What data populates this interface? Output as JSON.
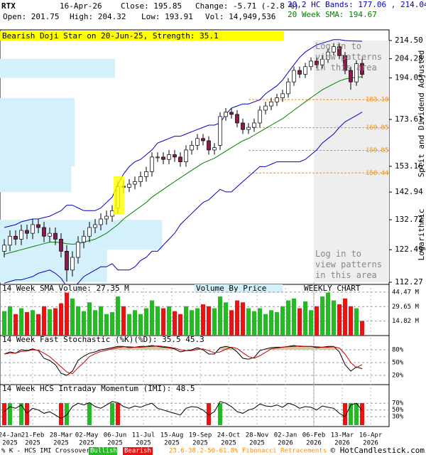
{
  "header": {
    "symbol": "RTX",
    "date": "16-Apr-26",
    "close": "Close: 195.85",
    "open": "Open: 201.75",
    "high": "High: 204.32",
    "low": "Low: 193.91",
    "change": "Change: -5.71 (-2.8 %)",
    "volume": "Vol: 14,949,536",
    "bands": "20,2 HC Bands: 177.06 , 214.04",
    "sma": "20 Week SMA: 194.67",
    "pattern": "Bearish Doji Star on 20-Jun-25, Strength: 35.1",
    "login_top": "Log in to view patterns in this area",
    "login_bottom": "Log in to view patterns in this area",
    "adjusted": "Split and Dividend Adjusted",
    "scale": "Logarithmic",
    "volume_by_price": "Volume By Price",
    "weekly": "WEEKLY CHART",
    "crossover": "% K - HCS IMI Crossover:",
    "bullish": "Bullish",
    "bearish": "Bearish",
    "fib": "23.6-38.2-50-61.8% Fibonacci Retracements",
    "copyright": "© HotCandlestick.com"
  },
  "chart_data": [
    {
      "type": "candlestick",
      "log_scale": true,
      "ylim": [
        112.27,
        214.5
      ],
      "yticks": [
        {
          "value": 214.5,
          "label": "214.50"
        },
        204.28,
        194.05,
        173.61,
        153.16,
        142.94,
        132.72,
        122.49,
        112.27
      ],
      "xticks": [
        {
          "value": 1,
          "label": "24-Jan",
          "year": "2025"
        },
        {
          "value": 5,
          "label": "21-Feb",
          "year": "2025"
        },
        {
          "value": 10,
          "label": "28-Mar",
          "year": "2025"
        },
        {
          "value": 14.5,
          "label": "02-May",
          "year": "2025"
        },
        {
          "value": 19.5,
          "label": "06-Jun",
          "year": "2025"
        },
        {
          "value": 24.5,
          "label": "11-Jul",
          "year": "2025"
        },
        {
          "value": 29.5,
          "label": "15-Aug",
          "year": "2025"
        },
        {
          "value": 34.5,
          "label": "19-Sep",
          "year": "2025"
        },
        {
          "value": 39.5,
          "label": "24-Oct",
          "year": "2025"
        },
        {
          "value": 44.5,
          "label": "28-Nov",
          "year": "2025"
        },
        {
          "value": 49.5,
          "label": "02-Jan",
          "year": "2026"
        },
        {
          "value": 54.5,
          "label": "06-Feb",
          "year": "2026"
        },
        {
          "value": 59.5,
          "label": "13-Mar",
          "year": "2026"
        },
        {
          "value": 64.5,
          "label": "16-Apr",
          "year": "2026"
        }
      ],
      "up_color": "#ffffff",
      "down_color": "#8b1a4a",
      "open": [
        122,
        124,
        127,
        126,
        129,
        128,
        131,
        130,
        127,
        128,
        126,
        122,
        116,
        120,
        125,
        127,
        130,
        131,
        133,
        134,
        137,
        145.2,
        144.8,
        146,
        147,
        149,
        151,
        157,
        157,
        156,
        158,
        157,
        155,
        160,
        162,
        165,
        164,
        160,
        162,
        175,
        177,
        176,
        172,
        169,
        170,
        172,
        178,
        180,
        182,
        184,
        186,
        192,
        198,
        196,
        200,
        203,
        201,
        204,
        208,
        211,
        206,
        198,
        192,
        201.75
      ],
      "high": [
        126,
        129,
        129,
        131,
        131,
        133,
        133,
        132,
        130,
        130,
        128,
        124,
        122,
        127,
        129,
        132,
        133,
        135,
        136,
        138,
        147,
        147.5,
        148,
        149,
        151,
        153,
        159,
        159,
        159,
        160,
        160,
        159,
        162,
        164,
        167,
        167,
        166,
        163,
        177,
        179,
        179,
        178,
        174,
        172,
        174,
        180,
        182,
        184,
        186,
        188,
        194,
        200,
        200,
        202,
        205,
        205,
        206,
        210,
        213,
        213,
        208,
        200,
        203.5,
        204.32
      ],
      "low": [
        120,
        122,
        124,
        124,
        126,
        126,
        128,
        125,
        125,
        124,
        120,
        112.5,
        114,
        118,
        123,
        125,
        128,
        129,
        131,
        132,
        135,
        142.5,
        143,
        144,
        145,
        147,
        149,
        155,
        154,
        154,
        155,
        153,
        153,
        158,
        160,
        162,
        158,
        158,
        160,
        173,
        174,
        170,
        167,
        167,
        168,
        170,
        176,
        178,
        180,
        182,
        184,
        190,
        194,
        194,
        198,
        199,
        199,
        202,
        206,
        204,
        196,
        188,
        190,
        193.91
      ],
      "close": [
        124,
        127,
        126,
        129,
        128,
        131,
        130,
        127,
        128,
        126,
        122,
        116,
        120,
        125,
        127,
        130,
        131,
        133,
        134,
        136,
        145,
        144.8,
        146,
        147,
        149,
        151,
        157,
        157,
        156,
        158,
        157,
        155,
        160,
        162,
        165,
        164,
        160,
        161,
        175,
        177,
        176,
        172,
        169,
        170,
        172,
        178,
        180,
        182,
        184,
        186,
        192,
        198,
        196,
        200,
        203,
        201,
        204,
        208,
        211,
        206,
        198,
        192,
        201.56,
        195.85
      ],
      "sma": {
        "color": "#008000",
        "values": [
          121,
          121.5,
          122,
          122.5,
          123,
          123.5,
          124,
          124.5,
          125,
          125,
          124.8,
          124.5,
          124.3,
          124.5,
          125,
          125.5,
          126,
          127,
          128,
          129.5,
          131,
          133,
          134.5,
          136,
          137.5,
          139,
          141,
          142.5,
          144,
          145.5,
          147,
          148.5,
          150,
          151.5,
          153,
          154.5,
          155.5,
          156.5,
          158,
          159.5,
          161,
          162.5,
          164,
          165,
          166.5,
          168,
          169.5,
          171,
          172.5,
          174,
          176,
          178,
          180,
          182,
          184,
          186,
          188,
          189.5,
          191,
          192.5,
          193.5,
          194,
          194.4,
          194.67
        ]
      },
      "bands": {
        "color": "#0000cc",
        "upper": [
          130,
          130.5,
          131,
          132,
          132.5,
          133,
          133,
          133.5,
          134,
          135,
          136,
          138,
          138,
          137,
          136,
          136,
          136,
          137,
          139,
          141,
          146,
          150,
          153,
          155,
          156,
          158,
          160,
          163,
          164,
          165,
          166,
          166,
          167,
          168,
          169,
          170,
          171,
          171,
          172,
          176,
          179,
          180,
          181,
          181,
          182,
          183,
          186,
          188,
          190,
          193,
          197,
          201,
          205,
          208,
          210,
          212,
          213,
          214,
          215,
          215,
          214.5,
          214.3,
          214.2,
          214.04
        ],
        "lower": [
          112,
          112.5,
          113,
          113,
          113.5,
          114,
          115,
          115.5,
          116,
          115,
          113.5,
          111,
          110.5,
          112,
          114,
          115,
          116,
          117,
          117,
          118,
          116,
          116,
          116,
          117,
          119,
          120,
          122,
          122,
          124,
          126,
          128,
          131,
          133,
          135,
          137,
          139,
          140,
          142,
          144,
          143,
          143,
          145,
          147,
          149,
          151,
          153,
          153,
          154,
          155,
          155,
          155,
          155,
          155,
          156,
          158,
          160,
          163,
          165,
          167,
          170,
          172.5,
          174,
          175.5,
          177.06
        ]
      },
      "fibonacci": {
        "color": "#ff8c00",
        "levels": [
          {
            "value": 183.1,
            "label": "183.10"
          },
          169.85,
          159.85,
          150.44
        ]
      },
      "volume_by_price": {
        "color": "#d4f1fb",
        "xlim": [
          0,
          240
        ],
        "bins": [
          112.27,
          122.49,
          132.72,
          142.94,
          153.16,
          163.38,
          173.61,
          183.83,
          194.05,
          204.28
        ],
        "values": [
          66,
          100,
          0,
          44,
          46,
          46,
          46,
          0,
          71
        ]
      }
    },
    {
      "type": "bar",
      "title": "14 Week SMA Volume: 27.35 M",
      "ylim": [
        0,
        46.6
      ],
      "yticks": [
        {
          "value": 44.47,
          "label": "44.47 M"
        },
        {
          "value": 29.65,
          "label": "29.65 M"
        },
        {
          "value": 14.82,
          "label": "14.82 M"
        }
      ],
      "up_color": "#22bb22",
      "down_color": "#ee1111",
      "values": [
        25,
        30,
        22,
        28,
        24,
        26,
        22,
        30,
        27,
        28,
        33,
        44,
        38,
        30,
        25,
        34,
        26,
        30,
        22,
        24,
        40,
        30,
        22,
        26,
        22,
        28,
        36,
        30,
        28,
        30,
        25,
        22,
        30,
        26,
        28,
        32,
        30,
        28,
        40,
        34,
        26,
        36,
        34,
        28,
        25,
        28,
        22,
        26,
        24,
        30,
        36,
        38,
        28,
        35,
        26,
        30,
        40,
        44,
        36,
        32,
        38,
        30,
        28,
        14.95
      ]
    },
    {
      "type": "line",
      "title": "14 Week Fast Stochastic (%K)(%D): 35.5 45.3",
      "ylim": [
        0,
        100
      ],
      "yticks": [
        {
          "value": 80,
          "label": "80%"
        },
        {
          "value": 50,
          "label": "50%"
        },
        {
          "value": 20,
          "label": "20%"
        }
      ],
      "fill_color": "#d8c8a0",
      "series": [
        {
          "color": "#000000",
          "values": [
            70,
            75,
            72,
            80,
            78,
            82,
            78,
            60,
            55,
            45,
            25,
            20,
            30,
            55,
            65,
            72,
            75,
            80,
            82,
            85,
            88,
            88,
            85,
            86,
            88,
            88,
            90,
            88,
            86,
            85,
            82,
            75,
            78,
            80,
            85,
            80,
            70,
            70,
            85,
            88,
            85,
            75,
            60,
            58,
            62,
            78,
            82,
            85,
            86,
            86,
            88,
            90,
            88,
            88,
            88,
            85,
            86,
            88,
            88,
            75,
            45,
            30,
            40,
            35.5
          ]
        },
        {
          "color": "#cc0000",
          "values": [
            70,
            72,
            72,
            76,
            77,
            80,
            79,
            72,
            64,
            52,
            40,
            28,
            24,
            38,
            50,
            64,
            71,
            76,
            79,
            82,
            85,
            87,
            87,
            86,
            86,
            87,
            88,
            89,
            88,
            86,
            84,
            80,
            78,
            78,
            81,
            82,
            78,
            73,
            75,
            81,
            86,
            83,
            73,
            64,
            60,
            66,
            74,
            82,
            84,
            86,
            87,
            88,
            89,
            88,
            88,
            87,
            86,
            86,
            87,
            84,
            70,
            50,
            38,
            45.3
          ]
        }
      ]
    },
    {
      "type": "line",
      "title": "14 Week HCS Intraday Momentum (IMI): 48.5",
      "ylim": [
        5,
        100
      ],
      "yticks": [
        {
          "value": 70,
          "label": "70%"
        },
        {
          "value": 50,
          "label": "50%"
        },
        {
          "value": 30,
          "label": "30%"
        }
      ],
      "series": [
        {
          "color": "#000000",
          "values": [
            45,
            60,
            55,
            65,
            40,
            55,
            50,
            40,
            45,
            35,
            25,
            35,
            60,
            70,
            65,
            72,
            60,
            55,
            65,
            75,
            72,
            60,
            55,
            62,
            58,
            65,
            70,
            55,
            50,
            45,
            40,
            35,
            55,
            60,
            58,
            50,
            35,
            45,
            75,
            70,
            60,
            45,
            40,
            50,
            55,
            68,
            62,
            60,
            65,
            58,
            70,
            65,
            55,
            60,
            58,
            50,
            62,
            58,
            55,
            40,
            30,
            65,
            70,
            48.5
          ]
        }
      ],
      "bullish_color": "#22bb22",
      "bearish_color": "#ee1111",
      "bullish_weeks": [
        1,
        3,
        11,
        15,
        19,
        38,
        61,
        62
      ],
      "bearish_weeks": [
        0,
        4,
        10,
        20,
        36,
        60,
        63
      ]
    }
  ]
}
